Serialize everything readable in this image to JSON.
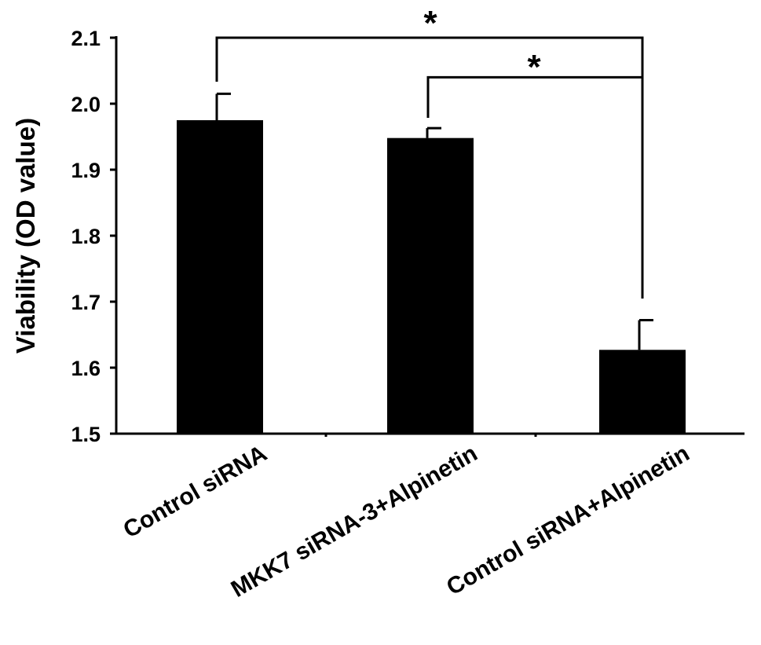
{
  "chart_data": {
    "type": "bar",
    "ylabel": "Viability (OD value)",
    "ylim": [
      1.5,
      2.1
    ],
    "yticks": [
      "1.5",
      "1.6",
      "1.7",
      "1.8",
      "1.9",
      "2.0",
      "2.1"
    ],
    "categories": [
      "Control siRNA",
      "MKK7 siRNA-3+Alpinetin",
      "Control siRNA+Alpinetin"
    ],
    "values": [
      1.975,
      1.948,
      1.627
    ],
    "errors": [
      0.04,
      0.015,
      0.045
    ],
    "bar_color": "#000000",
    "grid": false,
    "significance": [
      {
        "from": 0,
        "to": 2,
        "label": "*",
        "level": 2.1
      },
      {
        "from": 1,
        "to": 2,
        "label": "*",
        "level": 2.04
      }
    ]
  }
}
